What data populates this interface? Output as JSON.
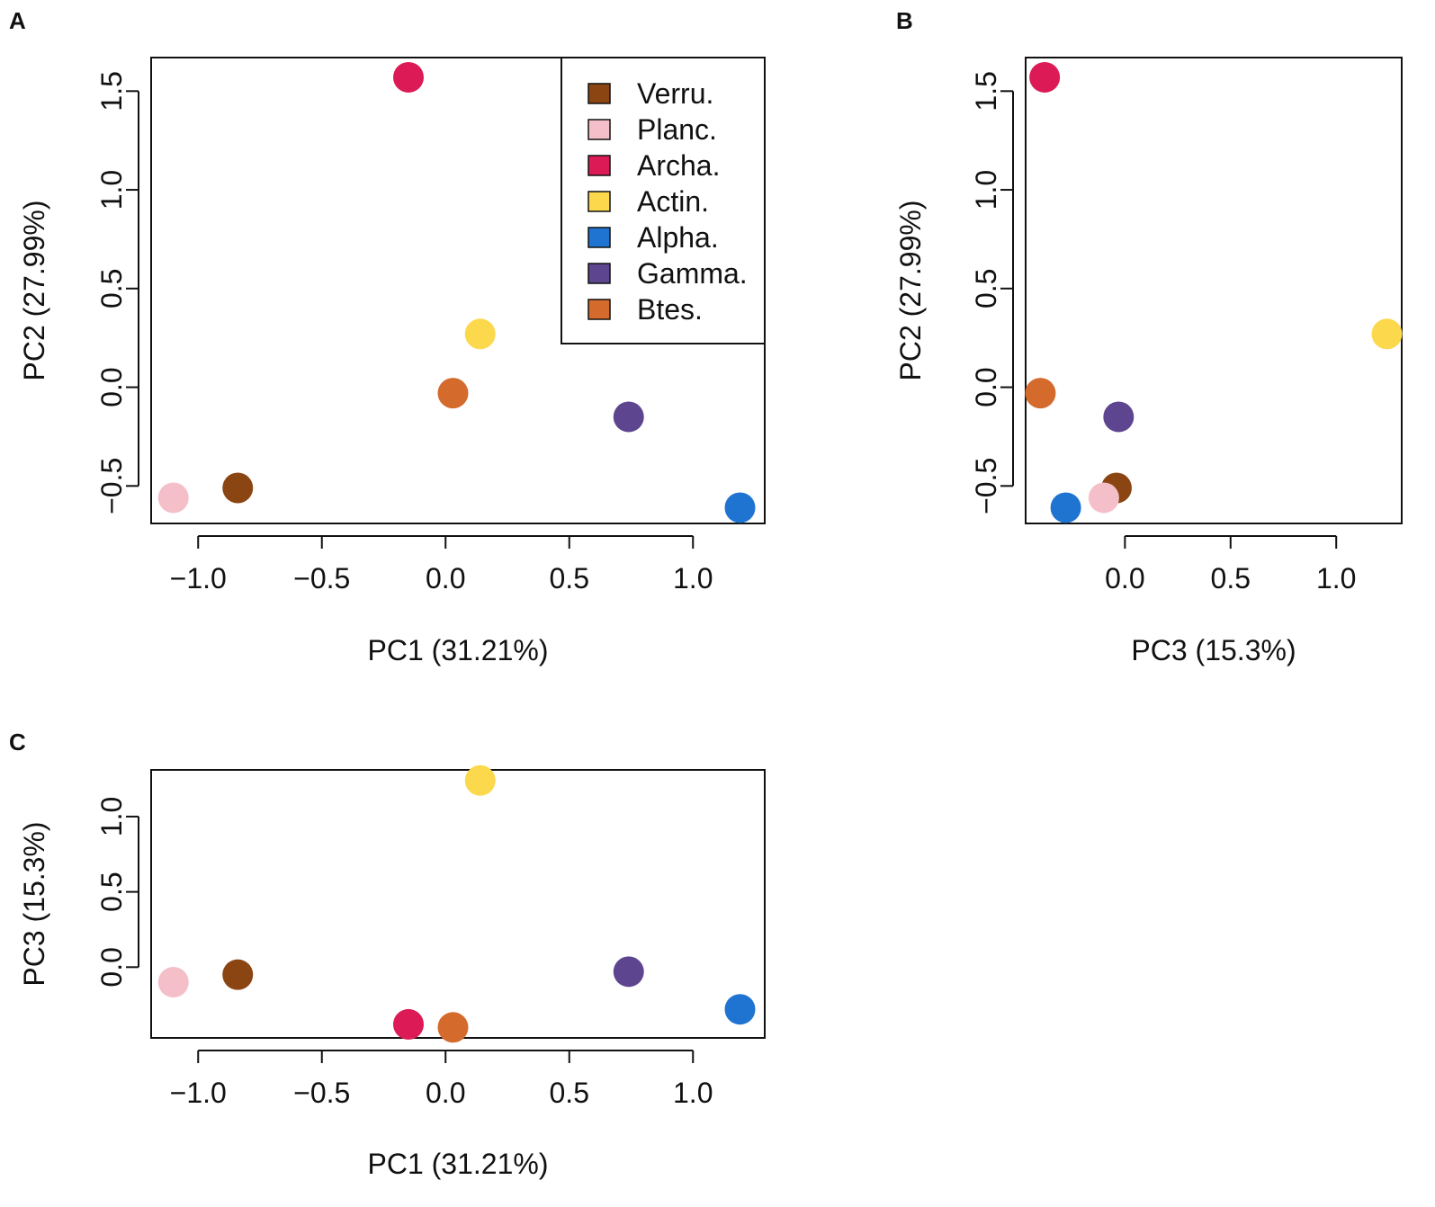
{
  "chart_data": [
    {
      "type": "scatter",
      "panel": "A",
      "xlabel": "PC1 (31.21%)",
      "ylabel": "PC2 (27.99%)",
      "xlim": [
        -1.19,
        1.29
      ],
      "ylim": [
        -0.69,
        1.67
      ],
      "xticks": [
        -1.0,
        -0.5,
        0.0,
        0.5,
        1.0
      ],
      "yticks": [
        -0.5,
        0.0,
        0.5,
        1.0,
        1.5
      ],
      "legend": "top-right",
      "points": [
        {
          "group": "Verru.",
          "x": -0.84,
          "y": -0.51
        },
        {
          "group": "Planc.",
          "x": -1.1,
          "y": -0.56
        },
        {
          "group": "Archa.",
          "x": -0.15,
          "y": 1.57
        },
        {
          "group": "Actin.",
          "x": 0.14,
          "y": 0.27
        },
        {
          "group": "Alpha.",
          "x": 1.19,
          "y": -0.61
        },
        {
          "group": "Gamma.",
          "x": 0.74,
          "y": -0.15
        },
        {
          "group": "Btes.",
          "x": 0.03,
          "y": -0.03
        }
      ]
    },
    {
      "type": "scatter",
      "panel": "B",
      "xlabel": "PC3 (15.3%)",
      "ylabel": "PC2 (27.99%)",
      "xlim": [
        -0.47,
        1.31
      ],
      "ylim": [
        -0.69,
        1.67
      ],
      "xticks": [
        0.0,
        0.5,
        1.0
      ],
      "yticks": [
        -0.5,
        0.0,
        0.5,
        1.0,
        1.5
      ],
      "points": [
        {
          "group": "Verru.",
          "x": -0.04,
          "y": -0.51
        },
        {
          "group": "Planc.",
          "x": -0.1,
          "y": -0.56
        },
        {
          "group": "Archa.",
          "x": -0.38,
          "y": 1.57
        },
        {
          "group": "Actin.",
          "x": 1.24,
          "y": 0.27
        },
        {
          "group": "Alpha.",
          "x": -0.28,
          "y": -0.61
        },
        {
          "group": "Gamma.",
          "x": -0.03,
          "y": -0.15
        },
        {
          "group": "Btes.",
          "x": -0.4,
          "y": -0.03
        }
      ]
    },
    {
      "type": "scatter",
      "panel": "C",
      "xlabel": "PC1 (31.21%)",
      "ylabel": "PC3 (15.3%)",
      "xlim": [
        -1.19,
        1.29
      ],
      "ylim": [
        -0.47,
        1.31
      ],
      "xticks": [
        -1.0,
        -0.5,
        0.0,
        0.5,
        1.0
      ],
      "yticks": [
        0.0,
        0.5,
        1.0
      ],
      "points": [
        {
          "group": "Verru.",
          "x": -0.84,
          "y": -0.05
        },
        {
          "group": "Planc.",
          "x": -1.1,
          "y": -0.1
        },
        {
          "group": "Archa.",
          "x": -0.15,
          "y": -0.38
        },
        {
          "group": "Actin.",
          "x": 0.14,
          "y": 1.24
        },
        {
          "group": "Alpha.",
          "x": 1.19,
          "y": -0.28
        },
        {
          "group": "Gamma.",
          "x": 0.74,
          "y": -0.03
        },
        {
          "group": "Btes.",
          "x": 0.03,
          "y": -0.4
        }
      ]
    }
  ],
  "legend": [
    {
      "label": "Verru.",
      "color": "#8B4513"
    },
    {
      "label": "Planc.",
      "color": "#F4BFC8"
    },
    {
      "label": "Archa.",
      "color": "#DC1A55"
    },
    {
      "label": "Actin.",
      "color": "#FCD84C"
    },
    {
      "label": "Alpha.",
      "color": "#1F74D2"
    },
    {
      "label": "Gamma.",
      "color": "#5E4590"
    },
    {
      "label": "Btes.",
      "color": "#D46A2C"
    }
  ],
  "panel_labels": [
    "A",
    "B",
    "C"
  ]
}
